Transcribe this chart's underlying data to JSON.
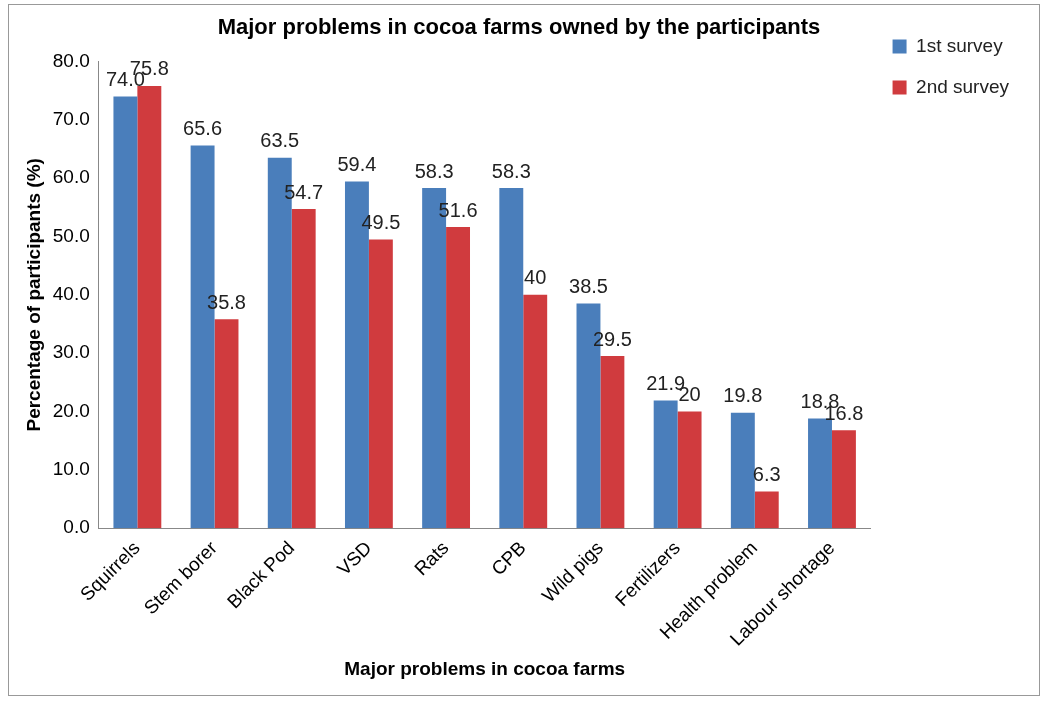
{
  "chart_data": {
    "type": "bar",
    "title": "Major problems in cocoa farms owned by the participants",
    "xlabel": "Major problems in cocoa farms",
    "ylabel": "Percentage of participants (%)",
    "categories": [
      "Squirrels",
      "Stem borer",
      "Black Pod",
      "VSD",
      "Rats",
      "CPB",
      "Wild pigs",
      "Fertilizers",
      "Health problem",
      "Labour shortage"
    ],
    "series": [
      {
        "name": "1st survey",
        "color": "#4a7ebb",
        "values": [
          74.0,
          65.6,
          63.5,
          59.4,
          58.3,
          58.3,
          38.5,
          21.9,
          19.8,
          18.8
        ],
        "value_labels": [
          "74.0",
          "65.6",
          "63.5",
          "59.4",
          "58.3",
          "58.3",
          "38.5",
          "21.9",
          "19.8",
          "18.8"
        ]
      },
      {
        "name": "2nd survey",
        "color": "#d03b3e",
        "values": [
          75.8,
          35.8,
          54.7,
          49.5,
          51.6,
          40,
          29.5,
          20,
          6.3,
          16.8
        ],
        "value_labels": [
          "75.8",
          "35.8",
          "54.7",
          "49.5",
          "51.6",
          "40",
          "29.5",
          "20",
          "6.3",
          "16.8"
        ]
      }
    ],
    "ylim": [
      0,
      80
    ],
    "yticks": [
      {
        "value": 0,
        "label": "0.0"
      },
      {
        "value": 10,
        "label": "10.0"
      },
      {
        "value": 20,
        "label": "20.0"
      },
      {
        "value": 30,
        "label": "30.0"
      },
      {
        "value": 40,
        "label": "40.0"
      },
      {
        "value": 50,
        "label": "50.0"
      },
      {
        "value": 60,
        "label": "60.0"
      },
      {
        "value": 70,
        "label": "70.0"
      },
      {
        "value": 80,
        "label": "80.0"
      }
    ],
    "grid": false,
    "legend": "top right"
  }
}
